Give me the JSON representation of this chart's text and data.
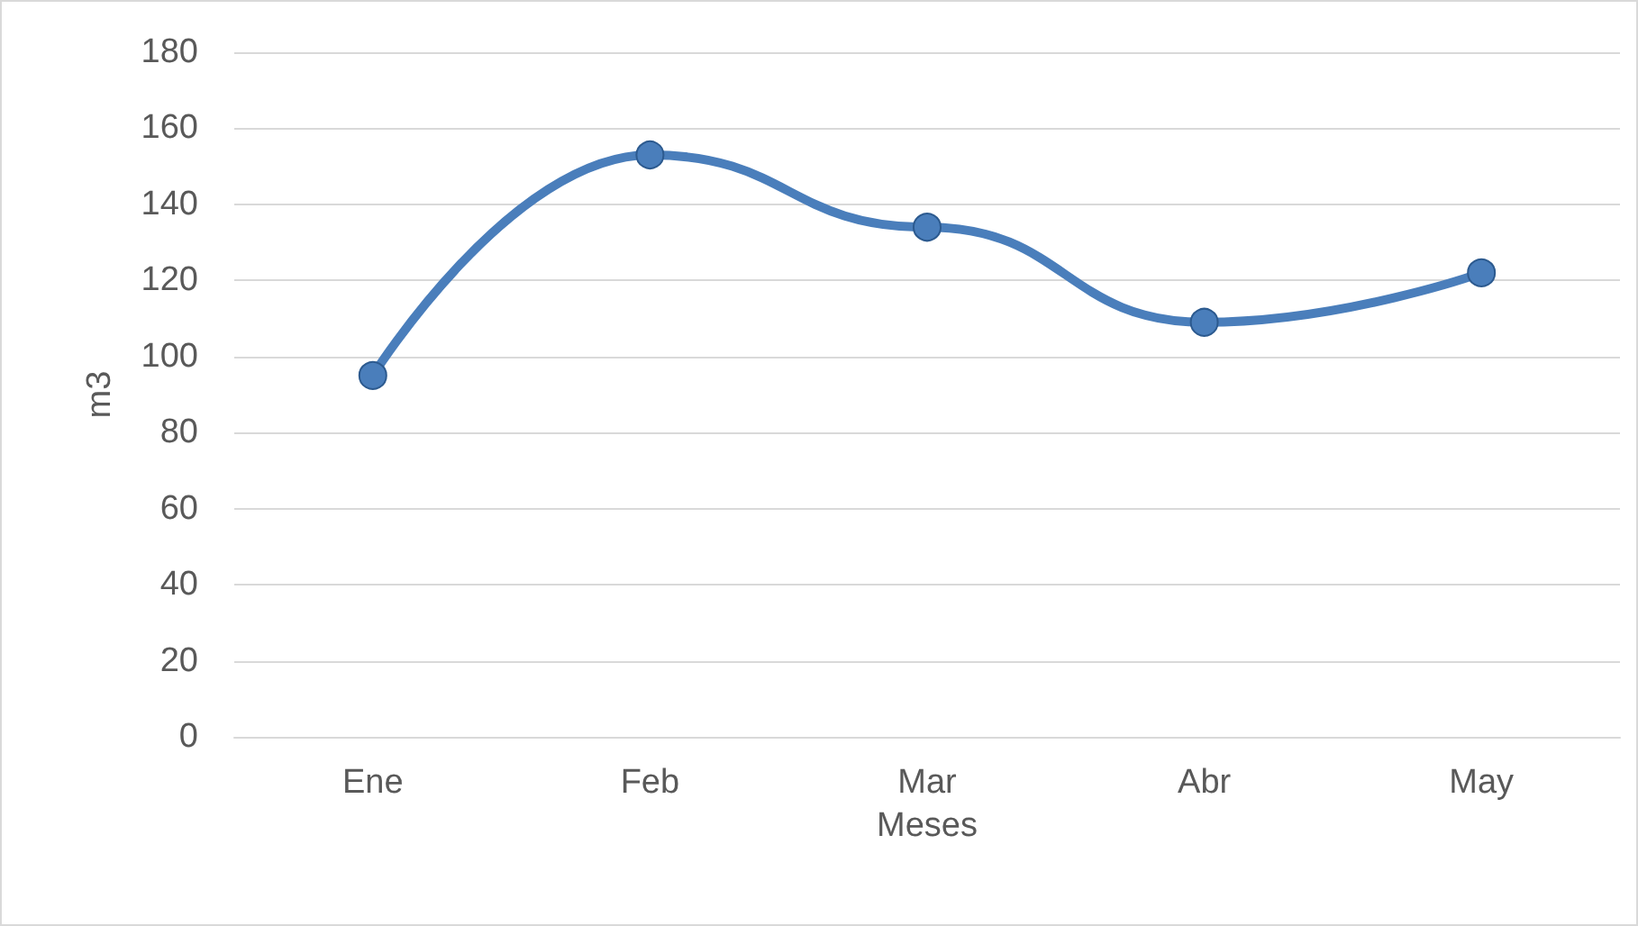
{
  "chart_data": {
    "type": "line",
    "xlabel": "Meses",
    "ylabel": "m3",
    "categories": [
      "Ene",
      "Feb",
      "Mar",
      "Abr",
      "May"
    ],
    "series": [
      {
        "color": "#4a7ebb",
        "values": [
          95,
          153,
          134,
          109,
          122
        ]
      }
    ],
    "ylim": [
      0,
      180
    ],
    "yticks": [
      0,
      20,
      40,
      60,
      80,
      100,
      120,
      140,
      160,
      180
    ],
    "grid": "y",
    "marker": "circle"
  }
}
